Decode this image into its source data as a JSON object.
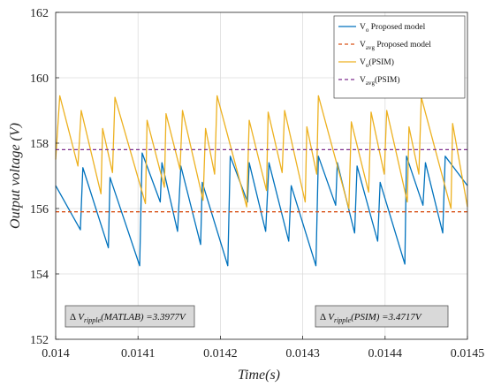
{
  "chart_data": {
    "type": "line",
    "title": "",
    "xlabel": "Time(s)",
    "ylabel": "Output voltage (V)",
    "xlim": [
      0.014,
      0.0145
    ],
    "ylim": [
      152,
      162
    ],
    "xticks": [
      0.014,
      0.0141,
      0.0142,
      0.0143,
      0.0144,
      0.0145
    ],
    "xtick_labels": [
      "0.014",
      "0.0141",
      "0.0142",
      "0.0143",
      "0.0144",
      "0.0145"
    ],
    "yticks": [
      152,
      154,
      156,
      158,
      160,
      162
    ],
    "ytick_labels": [
      "152",
      "154",
      "156",
      "158",
      "160",
      "162"
    ],
    "grid": true,
    "legend_position": "top-right",
    "legend": [
      {
        "main": "V",
        "sub": "o",
        "rest": " Proposed model",
        "color": "#0072BD",
        "dash": false
      },
      {
        "main": "V",
        "sub": "avg",
        "rest": " Proposed model",
        "color": "#D95319",
        "dash": true
      },
      {
        "main": "V",
        "sub": "o",
        "rest": "(PSIM)",
        "color": "#EDB120",
        "dash": false
      },
      {
        "main": "V",
        "sub": "avg",
        "rest": "(PSIM)",
        "color": "#7E2F8E",
        "dash": true
      }
    ],
    "series": [
      {
        "color": "#0072BD",
        "x": [
          0.014,
          0.01403,
          0.014033,
          0.014064,
          0.014066,
          0.014102,
          0.014105,
          0.014127,
          0.014129,
          0.014148,
          0.014152,
          0.014176,
          0.014178,
          0.014209,
          0.014212,
          0.014233,
          0.014235,
          0.014255,
          0.014259,
          0.014283,
          0.014286,
          0.014316,
          0.014319,
          0.01434,
          0.014342,
          0.014363,
          0.014366,
          0.014391,
          0.014394,
          0.014424,
          0.014426,
          0.014446,
          0.014449,
          0.01447,
          0.014473,
          0.0145
        ],
        "y": [
          156.7,
          155.35,
          157.25,
          154.8,
          156.95,
          154.25,
          157.7,
          156.2,
          157.4,
          155.3,
          157.3,
          154.9,
          156.8,
          154.25,
          157.6,
          156.2,
          157.4,
          155.3,
          157.4,
          155.0,
          156.7,
          154.25,
          157.6,
          156.1,
          157.4,
          155.25,
          157.3,
          155.0,
          156.8,
          154.3,
          157.6,
          156.1,
          157.4,
          155.25,
          157.6,
          156.7
        ]
      },
      {
        "color": "#EDB120",
        "x": [
          0.014,
          0.014005,
          0.014027,
          0.014031,
          0.014055,
          0.014057,
          0.014069,
          0.014072,
          0.014109,
          0.014111,
          0.014132,
          0.014134,
          0.014151,
          0.014154,
          0.014179,
          0.014182,
          0.014193,
          0.014196,
          0.014232,
          0.014235,
          0.014256,
          0.014258,
          0.014275,
          0.014278,
          0.014303,
          0.014305,
          0.014317,
          0.014319,
          0.014356,
          0.014359,
          0.01438,
          0.014383,
          0.014399,
          0.014402,
          0.014427,
          0.014429,
          0.014441,
          0.014444,
          0.01448,
          0.014482,
          0.0145
        ],
        "y": [
          157.5,
          159.45,
          157.3,
          159.0,
          156.45,
          158.45,
          157.1,
          159.4,
          156.15,
          158.7,
          156.65,
          158.9,
          157.2,
          159.0,
          156.25,
          158.45,
          157.05,
          159.45,
          156.05,
          158.7,
          156.55,
          158.95,
          157.1,
          159.0,
          156.2,
          158.5,
          157.05,
          159.45,
          156.0,
          158.65,
          156.5,
          158.95,
          157.05,
          159.0,
          156.2,
          158.5,
          157.05,
          159.4,
          156.0,
          158.6,
          156.05
        ]
      },
      {
        "color": "#D95319",
        "dash": true,
        "y_const": 155.9
      },
      {
        "color": "#7E2F8E",
        "dash": true,
        "y_const": 157.8
      }
    ],
    "annotations": [
      {
        "delta": "Δ ",
        "main": "V",
        "sub": "ripple",
        "rest": "(MATLAB) =3.3977V"
      },
      {
        "delta": "Δ ",
        "main": "V",
        "sub": "ripple",
        "rest": "(PSIM) =3.4717V"
      }
    ]
  }
}
